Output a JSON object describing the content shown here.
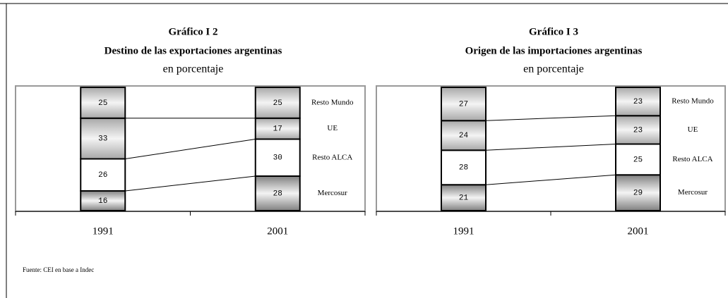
{
  "chart_data": [
    {
      "type": "stacked_bar",
      "title": "Gráfico I 2",
      "subtitle": "Destino de las exportaciones argentinas",
      "unit_label": "en porcentaje",
      "categories": [
        "1991",
        "2001"
      ],
      "ylim": [
        0,
        100
      ],
      "series": [
        {
          "name": "Mercosur",
          "color": "#808080",
          "values": [
            16,
            28
          ]
        },
        {
          "name": "Resto ALCA",
          "color": "#ffffff",
          "values": [
            26,
            30
          ]
        },
        {
          "name": "UE",
          "color": "#a8a8a8",
          "values": [
            33,
            17
          ]
        },
        {
          "name": "Resto Mundo",
          "color": "#a8a8a8",
          "values": [
            25,
            25
          ]
        }
      ]
    },
    {
      "type": "stacked_bar",
      "title": "Gráfico I 3",
      "subtitle": "Origen de las importaciones argentinas",
      "unit_label": "en porcentaje",
      "categories": [
        "1991",
        "2001"
      ],
      "ylim": [
        0,
        100
      ],
      "series": [
        {
          "name": "Mercosur",
          "color": "#808080",
          "values": [
            21,
            29
          ]
        },
        {
          "name": "Resto ALCA",
          "color": "#ffffff",
          "values": [
            28,
            25
          ]
        },
        {
          "name": "UE",
          "color": "#a8a8a8",
          "values": [
            24,
            23
          ]
        },
        {
          "name": "Resto Mundo",
          "color": "#a8a8a8",
          "values": [
            27,
            23
          ]
        }
      ]
    }
  ],
  "source": "Fuente: CEI en base a Indec"
}
